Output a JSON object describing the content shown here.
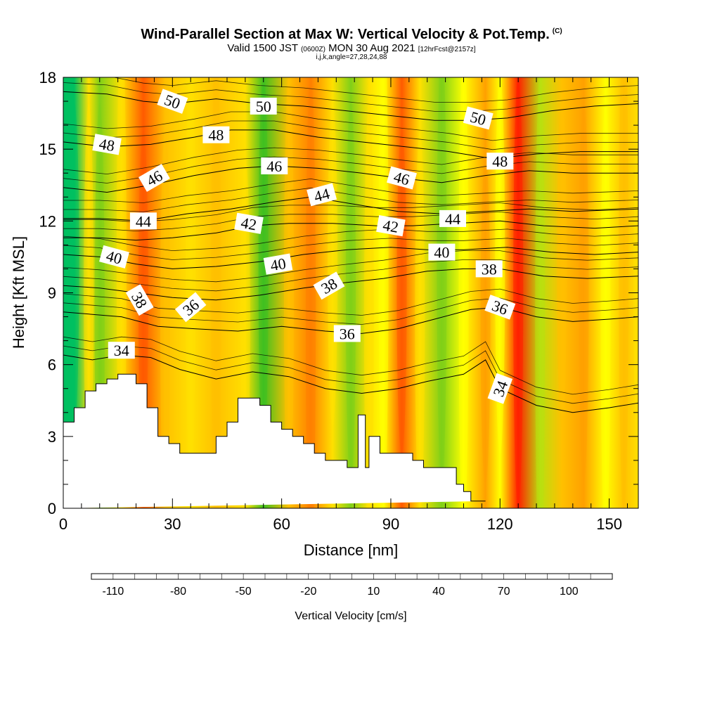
{
  "header": {
    "title": "Wind-Parallel Section at Max W: Vertical Velocity & Pot.Temp.",
    "title_mark": "(C)",
    "subtitle_a": "Valid 1500 JST",
    "subtitle_b": "(0600Z)",
    "subtitle_c": "MON 30 Aug 2021",
    "subtitle_d": "[12hrFcst@2157z]",
    "subtitle2": "i,j,k,angle=27,28,24,88"
  },
  "chart_data": {
    "type": "heatmap",
    "xlabel": "Distance [nm]",
    "ylabel": "Height [Kft MSL]",
    "xlim": [
      0,
      158
    ],
    "ylim": [
      0,
      18
    ],
    "x_ticks": [
      0,
      30,
      60,
      90,
      120,
      150
    ],
    "y_ticks": [
      0,
      3,
      6,
      9,
      12,
      15,
      18
    ],
    "colorbar": {
      "label": "Vertical Velocity [cm/s]",
      "tick_values": [
        -110,
        -80,
        -50,
        -20,
        10,
        40,
        70,
        100
      ],
      "colors": [
        "#0000ff",
        "#0033ff",
        "#0066ff",
        "#0099ff",
        "#00ccff",
        "#00e5e5",
        "#00d4a0",
        "#00c060",
        "#14b414",
        "#40c020",
        "#80d018",
        "#b8e010",
        "#ffff00",
        "#ffe000",
        "#ffc000",
        "#ffa000",
        "#ff8000",
        "#ff5a00",
        "#ff2000",
        "#e00020",
        "#c00040",
        "#a00060",
        "#800080",
        "#600090"
      ]
    },
    "velocity_bands": [
      {
        "x": 3,
        "value": -50
      },
      {
        "x": 7,
        "value": 10
      },
      {
        "x": 10,
        "value": -20
      },
      {
        "x": 16,
        "value": 10
      },
      {
        "x": 22,
        "value": 55
      },
      {
        "x": 28,
        "value": 25
      },
      {
        "x": 35,
        "value": 15
      },
      {
        "x": 42,
        "value": 25
      },
      {
        "x": 50,
        "value": 10
      },
      {
        "x": 55,
        "value": -25
      },
      {
        "x": 62,
        "value": 20
      },
      {
        "x": 68,
        "value": 40
      },
      {
        "x": 74,
        "value": 15
      },
      {
        "x": 79,
        "value": -15
      },
      {
        "x": 84,
        "value": 10
      },
      {
        "x": 88,
        "value": 0
      },
      {
        "x": 93,
        "value": 55
      },
      {
        "x": 98,
        "value": 10
      },
      {
        "x": 104,
        "value": -20
      },
      {
        "x": 110,
        "value": 5
      },
      {
        "x": 116,
        "value": 30
      },
      {
        "x": 120,
        "value": 5
      },
      {
        "x": 125,
        "value": 60
      },
      {
        "x": 131,
        "value": -5
      },
      {
        "x": 137,
        "value": 20
      },
      {
        "x": 143,
        "value": 35
      },
      {
        "x": 149,
        "value": 5
      },
      {
        "x": 154,
        "value": 20
      },
      {
        "x": 158,
        "value": 10
      }
    ],
    "terrain": {
      "x": [
        0,
        3,
        3,
        6,
        6,
        9,
        9,
        12,
        12,
        15,
        15,
        20,
        20,
        23,
        23,
        26,
        26,
        29,
        29,
        32,
        32,
        42,
        42,
        45,
        45,
        48,
        48,
        54,
        54,
        57,
        57,
        60,
        60,
        63,
        63,
        66,
        66,
        69,
        69,
        72,
        72,
        78,
        78,
        81,
        81,
        83,
        83,
        84,
        84,
        87,
        87,
        96,
        96,
        99,
        99,
        108,
        108,
        110,
        110,
        112,
        112,
        114,
        114,
        116,
        116,
        158
      ],
      "y": [
        3.6,
        3.6,
        4.2,
        4.2,
        4.9,
        4.9,
        5.2,
        5.2,
        5.4,
        5.4,
        5.6,
        5.6,
        5.2,
        5.2,
        4.2,
        4.2,
        3.0,
        3.0,
        2.7,
        2.7,
        2.3,
        2.3,
        3.0,
        3.0,
        3.6,
        3.6,
        4.6,
        4.6,
        4.3,
        4.3,
        3.6,
        3.6,
        3.3,
        3.3,
        3.0,
        3.0,
        2.7,
        2.7,
        2.3,
        2.3,
        2.0,
        2.0,
        1.7,
        1.7,
        3.9,
        3.9,
        1.7,
        1.7,
        3.0,
        3.0,
        2.3,
        2.3,
        2.0,
        2.0,
        1.7,
        1.7,
        1.0,
        1.0,
        0.7,
        0.7,
        0.3,
        0.3,
        0.3,
        0.3,
        0.3
      ]
    },
    "theta_contours": [
      {
        "label": "34",
        "points": [
          [
            0,
            6.4
          ],
          [
            8,
            6.2
          ],
          [
            16,
            6.4
          ],
          [
            24,
            6.3
          ],
          [
            32,
            5.8
          ],
          [
            42,
            5.4
          ],
          [
            52,
            5.7
          ],
          [
            62,
            5.5
          ],
          [
            72,
            5.0
          ],
          [
            82,
            4.8
          ],
          [
            92,
            5.0
          ],
          [
            100,
            5.3
          ],
          [
            110,
            5.6
          ],
          [
            116,
            6.2
          ],
          [
            120,
            5.0
          ],
          [
            130,
            4.3
          ],
          [
            140,
            4.0
          ],
          [
            150,
            4.2
          ],
          [
            158,
            4.4
          ]
        ],
        "labels": [
          {
            "x": 16,
            "y": 6.6,
            "angle": 0
          },
          {
            "x": 120,
            "y": 5.0,
            "angle": -70
          }
        ]
      },
      {
        "label": "36",
        "points": [
          [
            0,
            8.2
          ],
          [
            8,
            8.1
          ],
          [
            16,
            8.0
          ],
          [
            26,
            7.6
          ],
          [
            36,
            7.5
          ],
          [
            48,
            7.4
          ],
          [
            60,
            7.6
          ],
          [
            72,
            7.4
          ],
          [
            82,
            7.3
          ],
          [
            92,
            7.5
          ],
          [
            102,
            7.9
          ],
          [
            112,
            8.3
          ],
          [
            120,
            8.4
          ],
          [
            130,
            8.0
          ],
          [
            140,
            7.8
          ],
          [
            150,
            7.9
          ],
          [
            158,
            8.0
          ]
        ],
        "labels": [
          {
            "x": 35,
            "y": 8.4,
            "angle": -40
          },
          {
            "x": 78,
            "y": 7.3,
            "angle": 0
          },
          {
            "x": 120,
            "y": 8.4,
            "angle": 20
          }
        ]
      },
      {
        "label": "38",
        "points": [
          [
            0,
            9.3
          ],
          [
            10,
            9.2
          ],
          [
            20,
            9.0
          ],
          [
            30,
            8.8
          ],
          [
            42,
            8.7
          ],
          [
            54,
            8.9
          ],
          [
            66,
            9.2
          ],
          [
            76,
            9.4
          ],
          [
            88,
            9.6
          ],
          [
            100,
            9.9
          ],
          [
            110,
            10.0
          ],
          [
            120,
            10.0
          ],
          [
            132,
            9.7
          ],
          [
            144,
            9.6
          ],
          [
            158,
            9.7
          ]
        ],
        "labels": [
          {
            "x": 21,
            "y": 8.7,
            "angle": 60
          },
          {
            "x": 73,
            "y": 9.3,
            "angle": -30
          },
          {
            "x": 117,
            "y": 10.0,
            "angle": 0
          }
        ]
      },
      {
        "label": "40",
        "points": [
          [
            0,
            10.6
          ],
          [
            10,
            10.5
          ],
          [
            20,
            10.2
          ],
          [
            30,
            10.0
          ],
          [
            42,
            10.1
          ],
          [
            54,
            10.3
          ],
          [
            66,
            10.6
          ],
          [
            78,
            10.8
          ],
          [
            90,
            10.9
          ],
          [
            100,
            10.8
          ],
          [
            110,
            10.8
          ],
          [
            122,
            10.9
          ],
          [
            134,
            10.7
          ],
          [
            146,
            10.6
          ],
          [
            158,
            10.7
          ]
        ],
        "labels": [
          {
            "x": 14,
            "y": 10.5,
            "angle": 15
          },
          {
            "x": 59,
            "y": 10.2,
            "angle": -10
          },
          {
            "x": 104,
            "y": 10.7,
            "angle": 0
          }
        ]
      },
      {
        "label": "42",
        "points": [
          [
            0,
            11.3
          ],
          [
            10,
            11.3
          ],
          [
            20,
            11.2
          ],
          [
            30,
            11.3
          ],
          [
            42,
            11.5
          ],
          [
            52,
            11.8
          ],
          [
            62,
            11.9
          ],
          [
            74,
            11.9
          ],
          [
            86,
            11.8
          ],
          [
            96,
            11.8
          ],
          [
            108,
            11.9
          ],
          [
            120,
            12.0
          ],
          [
            132,
            11.8
          ],
          [
            146,
            11.7
          ],
          [
            158,
            11.8
          ]
        ],
        "labels": [
          {
            "x": 51,
            "y": 11.9,
            "angle": 10
          },
          {
            "x": 90,
            "y": 11.8,
            "angle": 10
          }
        ]
      },
      {
        "label": "44",
        "points": [
          [
            0,
            12.1
          ],
          [
            10,
            12.1
          ],
          [
            22,
            12.0
          ],
          [
            34,
            12.3
          ],
          [
            46,
            12.5
          ],
          [
            58,
            12.8
          ],
          [
            68,
            13.0
          ],
          [
            80,
            12.7
          ],
          [
            92,
            12.4
          ],
          [
            104,
            12.3
          ],
          [
            116,
            12.4
          ],
          [
            128,
            12.5
          ],
          [
            140,
            12.4
          ],
          [
            158,
            12.5
          ]
        ],
        "labels": [
          {
            "x": 22,
            "y": 12.0,
            "angle": 0
          },
          {
            "x": 71,
            "y": 13.1,
            "angle": -15
          },
          {
            "x": 107,
            "y": 12.1,
            "angle": 0
          }
        ]
      },
      {
        "label": "46",
        "points": [
          [
            0,
            13.4
          ],
          [
            12,
            13.2
          ],
          [
            24,
            13.5
          ],
          [
            36,
            13.9
          ],
          [
            48,
            14.2
          ],
          [
            58,
            14.3
          ],
          [
            70,
            14.2
          ],
          [
            82,
            14.0
          ],
          [
            92,
            13.8
          ],
          [
            104,
            13.6
          ],
          [
            116,
            13.9
          ],
          [
            128,
            14.1
          ],
          [
            140,
            14.0
          ],
          [
            158,
            14.0
          ]
        ],
        "labels": [
          {
            "x": 25,
            "y": 13.8,
            "angle": -30
          },
          {
            "x": 58,
            "y": 14.3,
            "angle": 0
          },
          {
            "x": 93,
            "y": 13.8,
            "angle": 15
          }
        ]
      },
      {
        "label": "48",
        "points": [
          [
            0,
            15.3
          ],
          [
            12,
            15.1
          ],
          [
            24,
            15.2
          ],
          [
            36,
            15.5
          ],
          [
            46,
            15.8
          ],
          [
            58,
            15.8
          ],
          [
            70,
            15.5
          ],
          [
            82,
            15.3
          ],
          [
            94,
            15.1
          ],
          [
            106,
            14.9
          ],
          [
            118,
            14.6
          ],
          [
            130,
            14.8
          ],
          [
            142,
            14.9
          ],
          [
            158,
            14.9
          ]
        ],
        "labels": [
          {
            "x": 12,
            "y": 15.2,
            "angle": 10
          },
          {
            "x": 42,
            "y": 15.6,
            "angle": 0
          },
          {
            "x": 120,
            "y": 14.5,
            "angle": 0
          }
        ]
      },
      {
        "label": "50",
        "points": [
          [
            0,
            17.4
          ],
          [
            12,
            17.3
          ],
          [
            22,
            17.0
          ],
          [
            30,
            16.9
          ],
          [
            42,
            17.1
          ],
          [
            54,
            16.9
          ],
          [
            66,
            16.8
          ],
          [
            78,
            16.6
          ],
          [
            90,
            16.4
          ],
          [
            102,
            16.2
          ],
          [
            112,
            16.2
          ],
          [
            122,
            16.3
          ],
          [
            134,
            16.6
          ],
          [
            146,
            16.8
          ],
          [
            158,
            16.9
          ]
        ],
        "labels": [
          {
            "x": 30,
            "y": 17.0,
            "angle": 20
          },
          {
            "x": 55,
            "y": 16.8,
            "angle": 0
          },
          {
            "x": 114,
            "y": 16.3,
            "angle": 15
          }
        ]
      }
    ]
  }
}
